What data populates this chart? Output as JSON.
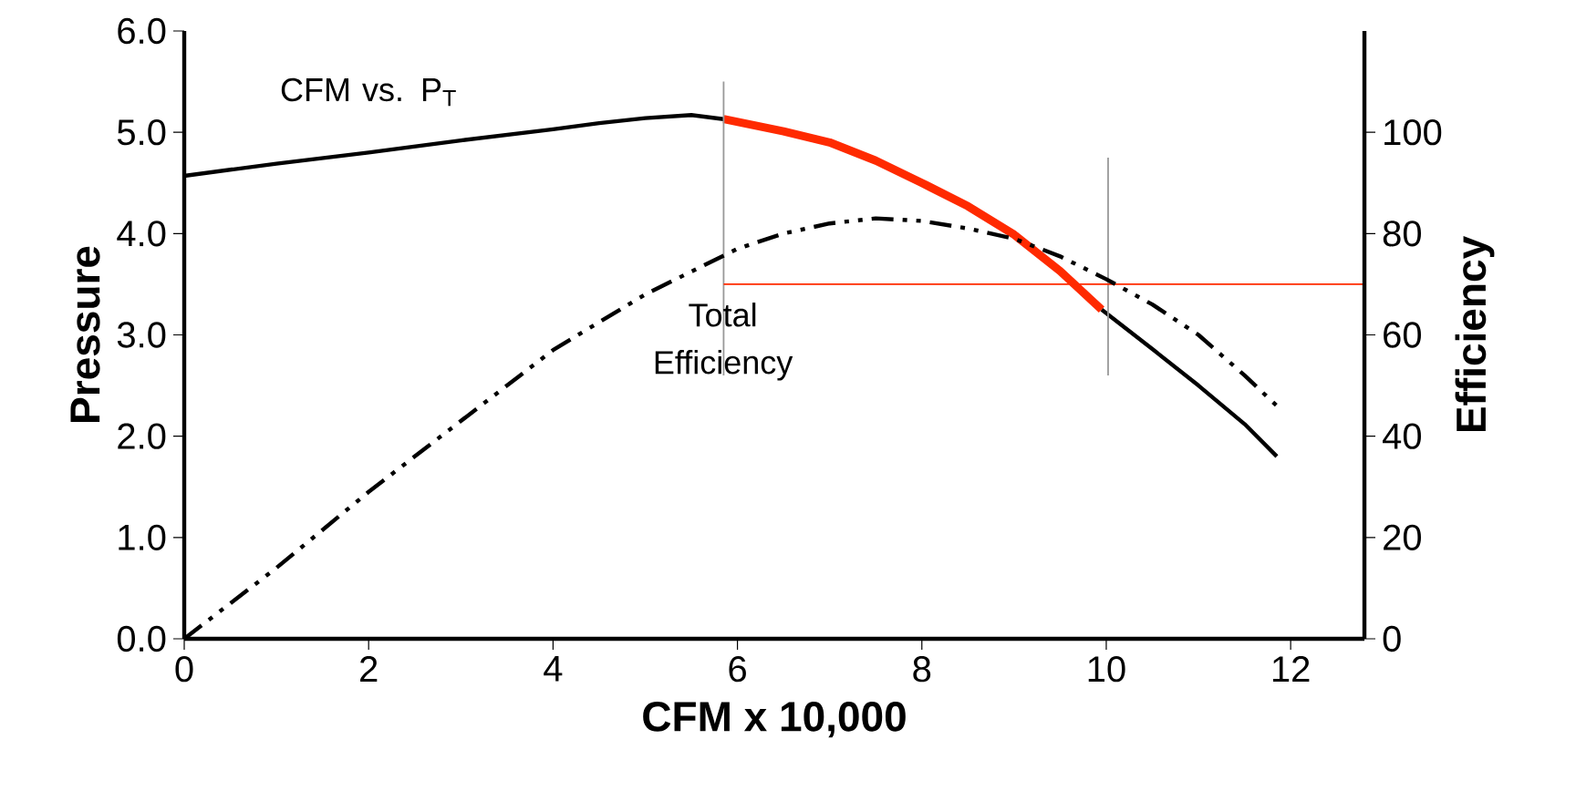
{
  "chart_data": {
    "type": "line",
    "xlabel": "CFM x 10,000",
    "ylabel": "Pressure",
    "y2label": "Efficiency",
    "xlim": [
      0,
      12.8
    ],
    "xticks": [
      0,
      2,
      4,
      6,
      8,
      10,
      12
    ],
    "ylim": [
      0,
      6
    ],
    "yticks": [
      {
        "value": 0,
        "label": "0.0"
      },
      {
        "value": 1,
        "label": "1.0"
      },
      {
        "value": 2,
        "label": "2.0"
      },
      {
        "value": 3,
        "label": "3.0"
      },
      {
        "value": 4,
        "label": "4.0"
      },
      {
        "value": 5,
        "label": "5.0"
      },
      {
        "value": 6,
        "label": "6.0"
      }
    ],
    "y2lim": [
      0,
      120
    ],
    "y2ticks": [
      0,
      20,
      40,
      60,
      80,
      100
    ],
    "grid": false,
    "marker": "none",
    "series": [
      {
        "name": "CFM vs. P$_{T}$",
        "color": "#000000",
        "line_style": "solid",
        "x": [
          0,
          1,
          2,
          3,
          4,
          4.5,
          5,
          5.5,
          5.85
        ],
        "values": [
          4.57,
          4.69,
          4.8,
          4.92,
          5.03,
          5.09,
          5.14,
          5.17,
          5.13
        ]
      },
      {
        "color": "#000000",
        "line_style": "solid",
        "x": [
          9.95,
          10.5,
          11,
          11.5,
          11.85
        ],
        "values": [
          3.25,
          2.86,
          2.5,
          2.12,
          1.8
        ]
      },
      {
        "color": "#ff2a00",
        "line_style": "solid",
        "x": [
          5.85,
          6.5,
          7,
          7.5,
          8,
          8.5,
          9,
          9.5,
          9.95
        ],
        "values": [
          5.13,
          5.01,
          4.9,
          4.72,
          4.5,
          4.27,
          3.99,
          3.63,
          3.25
        ]
      },
      {
        "name": "Total Efficiency",
        "color": "#000000",
        "line_style": "dashed",
        "axis": "y2",
        "x": [
          0,
          1,
          2,
          3,
          4,
          5,
          6,
          6.5,
          7,
          7.5,
          8,
          8.5,
          9,
          9.5,
          10,
          10.5,
          11,
          11.5,
          11.85
        ],
        "values": [
          0,
          14,
          29,
          43,
          57,
          68,
          77,
          80,
          82,
          83,
          82.5,
          81,
          79,
          75.5,
          71,
          66,
          60,
          52,
          46
        ]
      },
      {
        "color": "#999999",
        "line_style": "solid",
        "x": [
          5.85,
          5.85
        ],
        "values": [
          5.5,
          2.6
        ]
      },
      {
        "color": "#999999",
        "line_style": "solid",
        "x": [
          10.02,
          10.02
        ],
        "values": [
          4.75,
          2.6
        ]
      },
      {
        "color": "#ff2a00",
        "line_style": "solid",
        "x": [
          5.85,
          12.8
        ],
        "values": [
          3.5,
          3.5
        ]
      }
    ]
  }
}
